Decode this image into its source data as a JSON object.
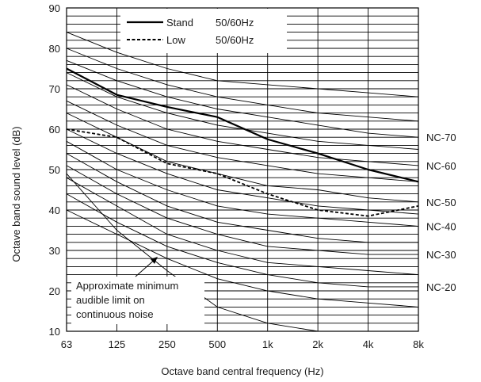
{
  "chart_data": {
    "type": "line",
    "title": "",
    "xlabel": "Octave band central frequency (Hz)",
    "ylabel": "Octave band sound level (dB)",
    "x_categories": [
      "63",
      "125",
      "250",
      "500",
      "1k",
      "2k",
      "4k",
      "8k"
    ],
    "ylim": [
      10,
      90
    ],
    "y_ticks": [
      10,
      20,
      30,
      40,
      50,
      60,
      70,
      80,
      90
    ],
    "grid": {
      "horizontal_step_db": 2,
      "vertical": "each octave band"
    },
    "legend_position": "top-center",
    "series": [
      {
        "name": "Stand",
        "label_suffix": "50/60Hz",
        "style": "solid",
        "values": [
          75,
          68.5,
          65.5,
          63,
          57.5,
          54,
          50,
          47
        ]
      },
      {
        "name": "Low",
        "label_suffix": "50/60Hz",
        "style": "dashed",
        "values": [
          60,
          58,
          51.5,
          49,
          44,
          40,
          38.5,
          41
        ]
      }
    ],
    "nc_curves": [
      {
        "values": [
          84,
          79,
          75,
          72,
          71,
          70,
          69,
          68
        ]
      },
      {
        "values": [
          80,
          75,
          71,
          68,
          66,
          64,
          63,
          62
        ]
      },
      {
        "label": "NC-70",
        "values": [
          77,
          72,
          68,
          65,
          63,
          61,
          59,
          58
        ]
      },
      {
        "values": [
          74,
          68,
          64,
          61,
          59,
          57,
          56,
          55
        ]
      },
      {
        "label": "NC-60",
        "values": [
          71,
          65,
          60,
          57,
          55,
          53,
          52,
          51
        ]
      },
      {
        "values": [
          67,
          61,
          56,
          53,
          51,
          49,
          48,
          47
        ]
      },
      {
        "label": "NC-50",
        "values": [
          64,
          58,
          52,
          49,
          46,
          45,
          43,
          42
        ]
      },
      {
        "values": [
          60,
          54,
          49,
          45,
          43,
          41,
          40,
          39
        ]
      },
      {
        "label": "NC-40",
        "values": [
          57,
          50,
          45,
          41,
          39,
          38,
          37,
          36
        ]
      },
      {
        "values": [
          54,
          47,
          41,
          37,
          35,
          33,
          32,
          32
        ]
      },
      {
        "label": "NC-30",
        "values": [
          51,
          44,
          38,
          34,
          31,
          30,
          29,
          29
        ]
      },
      {
        "values": [
          48,
          41,
          34,
          30,
          27,
          26,
          25,
          24
        ]
      },
      {
        "label": "NC-20",
        "values": [
          44,
          37,
          31,
          27,
          24,
          22,
          21,
          21
        ]
      },
      {
        "values": [
          40,
          34,
          28,
          23,
          20,
          18,
          17,
          16
        ]
      },
      {
        "values": [
          49,
          35,
          25,
          16,
          12,
          10,
          10,
          10
        ]
      }
    ],
    "annotation": {
      "lines": [
        "Approximate minimum",
        "audible limit on",
        "continuous noise"
      ]
    }
  }
}
